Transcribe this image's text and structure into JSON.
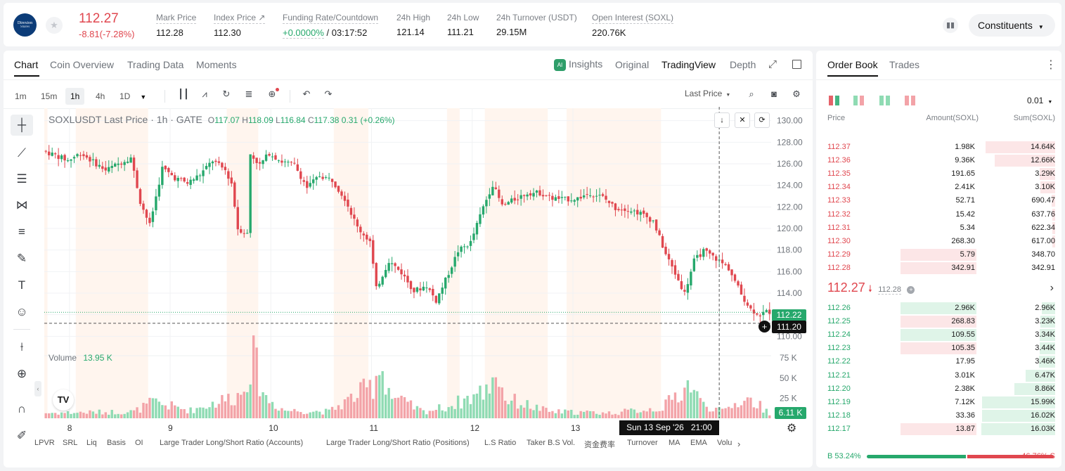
{
  "header": {
    "logo_text": "Direxion",
    "logo_sub": "Shares",
    "last_price": "112.27",
    "change": "-8.81(-7.28%)",
    "stats": [
      {
        "label": "Mark Price",
        "value": "112.28"
      },
      {
        "label": "Index Price ↗",
        "value": "112.30"
      },
      {
        "label": "Funding Rate/Countdown",
        "value": "+0.0000%",
        "value2": "/ 03:17:52"
      },
      {
        "label": "24h High",
        "value": "121.14"
      },
      {
        "label": "24h Low",
        "value": "111.21"
      },
      {
        "label": "24h Turnover (USDT)",
        "value": "29.15M"
      },
      {
        "label": "Open Interest (SOXL)",
        "value": "220.76K"
      }
    ],
    "constituents": "Constituents",
    "star_icon": "star-icon"
  },
  "chart_tabs": [
    "Chart",
    "Coin Overview",
    "Trading Data",
    "Moments"
  ],
  "view_tabs": {
    "insights": "Insights",
    "ai": "AI",
    "original": "Original",
    "tradingview": "TradingView",
    "depth": "Depth"
  },
  "timeframes": [
    "1m",
    "15m",
    "1h",
    "4h",
    "1D"
  ],
  "active_timeframe": "1h",
  "last_price_select": "Last Price",
  "legend": {
    "symbol": "SOXLUSDT Last Price · 1h · GATE",
    "o_label": "O",
    "o": "117.07",
    "h_label": "H",
    "h": "118.09",
    "l_label": "L",
    "l": "116.84",
    "c_label": "C",
    "c": "117.38",
    "chg": "0.31 (+0.26%)"
  },
  "volume": {
    "label": "Volume",
    "value": "13.95 K",
    "last": "6.11 K"
  },
  "price_axis": [
    "130.00",
    "128.00",
    "126.00",
    "124.00",
    "122.00",
    "120.00",
    "118.00",
    "116.00",
    "114.00",
    "112.00",
    "110.00"
  ],
  "volume_axis": [
    "75 K",
    "50 K",
    "25 K"
  ],
  "price_tag_current": "112.22",
  "price_tag_cursor": "111.20",
  "date_labels": [
    "8",
    "9",
    "10",
    "11",
    "12",
    "13"
  ],
  "crosshair_label": "Sun 13 Sep '26   21:00",
  "indicators": [
    "LPVR",
    "SRL",
    "Liq",
    "Basis",
    "OI",
    "Large Trader Long/Short Ratio (Accounts)",
    "Large Trader Long/Short Ratio (Positions)",
    "L.S Ratio",
    "Taker B.S Vol.",
    "资金费率",
    "Turnover",
    "MA",
    "EMA",
    "Volu"
  ],
  "colors": {
    "up": "#26a86c",
    "down": "#e0474f",
    "up_vol": "#8fdbb3",
    "down_vol": "#f3a3a8",
    "session": "#fff5ee"
  },
  "orderbook": {
    "tabs": [
      "Order Book",
      "Trades"
    ],
    "precision": "0.01",
    "headers": [
      "Price",
      "Amount(SOXL)",
      "Sum(SOXL)"
    ],
    "asks": [
      {
        "p": "112.37",
        "a": "1.98K",
        "s": "14.64K",
        "sf": 0.94,
        "af": 0
      },
      {
        "p": "112.36",
        "a": "9.36K",
        "s": "12.66K",
        "sf": 0.82,
        "af": 0
      },
      {
        "p": "112.35",
        "a": "191.65",
        "s": "3.29K",
        "sf": 0.21,
        "af": 0
      },
      {
        "p": "112.34",
        "a": "2.41K",
        "s": "3.10K",
        "sf": 0.2,
        "af": 0
      },
      {
        "p": "112.33",
        "a": "52.71",
        "s": "690.47",
        "sf": 0.05,
        "af": 0
      },
      {
        "p": "112.32",
        "a": "15.42",
        "s": "637.76",
        "sf": 0.04,
        "af": 0
      },
      {
        "p": "112.31",
        "a": "5.34",
        "s": "622.34",
        "sf": 0.04,
        "af": 0
      },
      {
        "p": "112.30",
        "a": "268.30",
        "s": "617.00",
        "sf": 0.04,
        "af": 0
      },
      {
        "p": "112.29",
        "a": "5.79",
        "s": "348.70",
        "sf": 0,
        "af": 1
      },
      {
        "p": "112.28",
        "a": "342.91",
        "s": "342.91",
        "sf": 0,
        "af": 1
      }
    ],
    "mid_price": "112.27",
    "mid_mark": "112.28",
    "bids": [
      {
        "p": "112.26",
        "a": "2.96K",
        "s": "2.96K",
        "sf": 0.18,
        "af": 1,
        "ac": "g"
      },
      {
        "p": "112.25",
        "a": "268.83",
        "s": "3.23K",
        "sf": 0.2,
        "af": 1,
        "ac": "r"
      },
      {
        "p": "112.24",
        "a": "109.55",
        "s": "3.34K",
        "sf": 0.21,
        "af": 1,
        "ac": "g"
      },
      {
        "p": "112.23",
        "a": "105.35",
        "s": "3.44K",
        "sf": 0.21,
        "af": 1,
        "ac": "r"
      },
      {
        "p": "112.22",
        "a": "17.95",
        "s": "3.46K",
        "sf": 0.22,
        "af": 0,
        "ac": "g"
      },
      {
        "p": "112.21",
        "a": "3.01K",
        "s": "6.47K",
        "sf": 0.4,
        "af": 0,
        "ac": "g"
      },
      {
        "p": "112.20",
        "a": "2.38K",
        "s": "8.86K",
        "sf": 0.55,
        "af": 0,
        "ac": "g"
      },
      {
        "p": "112.19",
        "a": "7.12K",
        "s": "15.99K",
        "sf": 0.99,
        "af": 0,
        "ac": "g"
      },
      {
        "p": "112.18",
        "a": "33.36",
        "s": "16.02K",
        "sf": 0.99,
        "af": 0,
        "ac": "g"
      },
      {
        "p": "112.17",
        "a": "13.87",
        "s": "16.03K",
        "sf": 1.0,
        "af": 1,
        "ac": "r"
      }
    ],
    "buy_label": "B",
    "buy_pct": "53.24%",
    "sell_pct": "46.76%",
    "sell_label": "S",
    "buy_ratio": 0.5324
  },
  "chart_data": {
    "type": "candlestick",
    "title": "SOXLUSDT Last Price · 1h · GATE",
    "x_ticks": [
      "8",
      "9",
      "10",
      "11",
      "12",
      "13"
    ],
    "ylim": [
      109.5,
      130.5
    ],
    "volume_ylim": [
      0,
      90
    ],
    "anchors": [
      [
        0,
        127.2
      ],
      [
        4,
        126.8
      ],
      [
        8,
        126.3
      ],
      [
        12,
        127.0
      ],
      [
        16,
        126.2
      ],
      [
        20,
        125.4
      ],
      [
        24,
        126.0
      ],
      [
        28,
        126.6
      ],
      [
        31,
        122.5
      ],
      [
        34,
        120.3
      ],
      [
        38,
        125.6
      ],
      [
        42,
        124.7
      ],
      [
        46,
        124.2
      ],
      [
        50,
        125.0
      ],
      [
        54,
        126.3
      ],
      [
        58,
        125.4
      ],
      [
        60,
        124.2
      ],
      [
        62,
        120.0
      ],
      [
        65,
        119.5
      ],
      [
        66,
        126.9
      ],
      [
        69,
        125.9
      ],
      [
        72,
        127.0
      ],
      [
        76,
        126.2
      ],
      [
        80,
        125.9
      ],
      [
        84,
        123.8
      ],
      [
        88,
        124.9
      ],
      [
        92,
        124.5
      ],
      [
        96,
        122.8
      ],
      [
        100,
        120.1
      ],
      [
        104,
        118.8
      ],
      [
        106,
        114.4
      ],
      [
        110,
        117.0
      ],
      [
        114,
        115.9
      ],
      [
        118,
        114.2
      ],
      [
        122,
        114.7
      ],
      [
        125,
        113.3
      ],
      [
        128,
        115.2
      ],
      [
        132,
        117.9
      ],
      [
        136,
        118.7
      ],
      [
        140,
        122.0
      ],
      [
        143,
        124.1
      ],
      [
        146,
        122.1
      ],
      [
        150,
        122.7
      ],
      [
        154,
        123.3
      ],
      [
        158,
        123.3
      ],
      [
        162,
        122.8
      ],
      [
        166,
        122.7
      ],
      [
        170,
        122.8
      ],
      [
        174,
        123.3
      ],
      [
        178,
        122.9
      ],
      [
        182,
        121.9
      ],
      [
        186,
        121.8
      ],
      [
        190,
        121.4
      ],
      [
        194,
        120.7
      ],
      [
        198,
        117.6
      ],
      [
        202,
        115.2
      ],
      [
        204,
        114.0
      ],
      [
        207,
        117.0
      ],
      [
        210,
        117.9
      ],
      [
        214,
        117.2
      ],
      [
        218,
        116.3
      ],
      [
        222,
        113.9
      ],
      [
        225,
        112.5
      ],
      [
        228,
        112.0
      ],
      [
        230,
        112.27
      ]
    ],
    "volume_profile": [
      [
        0,
        8
      ],
      [
        28,
        10
      ],
      [
        34,
        24
      ],
      [
        38,
        20
      ],
      [
        46,
        12
      ],
      [
        62,
        36
      ],
      [
        64,
        72
      ],
      [
        66,
        88
      ],
      [
        70,
        30
      ],
      [
        76,
        12
      ],
      [
        90,
        10
      ],
      [
        104,
        50
      ],
      [
        106,
        85
      ],
      [
        110,
        32
      ],
      [
        120,
        10
      ],
      [
        128,
        18
      ],
      [
        140,
        42
      ],
      [
        143,
        74
      ],
      [
        146,
        30
      ],
      [
        160,
        10
      ],
      [
        180,
        8
      ],
      [
        196,
        16
      ],
      [
        205,
        54
      ],
      [
        208,
        24
      ],
      [
        215,
        10
      ],
      [
        222,
        30
      ],
      [
        226,
        22
      ],
      [
        230,
        8
      ]
    ],
    "session_bands": [
      [
        0,
        1
      ],
      [
        10,
        33
      ],
      [
        58,
        68
      ],
      [
        92,
        103
      ],
      [
        128,
        132
      ],
      [
        140,
        160
      ],
      [
        166,
        196
      ]
    ],
    "crosshair_index": 214
  }
}
